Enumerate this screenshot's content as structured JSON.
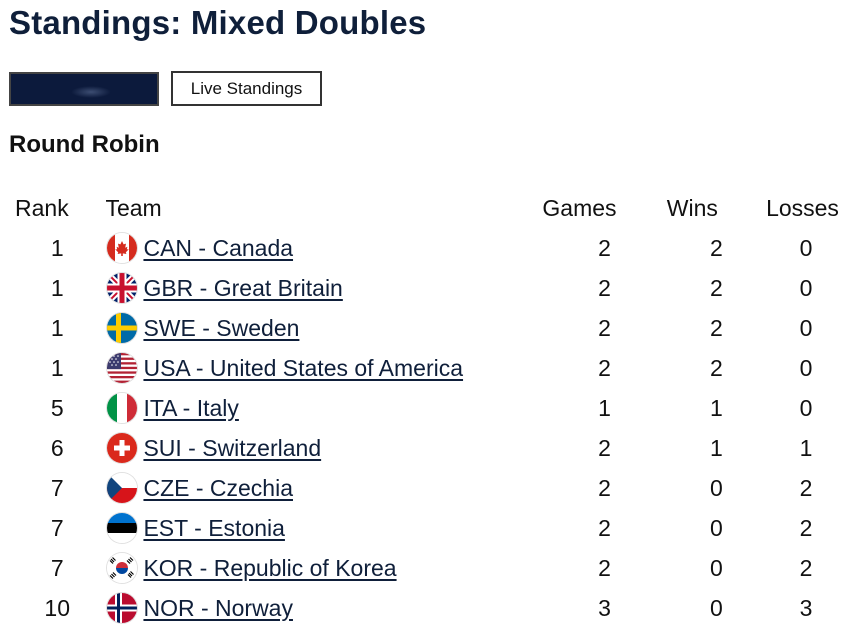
{
  "page": {
    "title": "Standings: Mixed Doubles",
    "live_button": "Live Standings",
    "section_title": "Round Robin"
  },
  "table": {
    "headers": {
      "rank": "Rank",
      "team": "Team",
      "games": "Games",
      "wins": "Wins",
      "losses": "Losses"
    },
    "rows": [
      {
        "rank": "1",
        "team": "CAN - Canada",
        "flag": "canada-flag-icon",
        "games": "2",
        "wins": "2",
        "losses": "0"
      },
      {
        "rank": "1",
        "team": "GBR - Great Britain",
        "flag": "great-britain-flag-icon",
        "games": "2",
        "wins": "2",
        "losses": "0"
      },
      {
        "rank": "1",
        "team": "SWE - Sweden",
        "flag": "sweden-flag-icon",
        "games": "2",
        "wins": "2",
        "losses": "0"
      },
      {
        "rank": "1",
        "team": "USA - United States of America",
        "flag": "usa-flag-icon",
        "games": "2",
        "wins": "2",
        "losses": "0"
      },
      {
        "rank": "5",
        "team": "ITA - Italy",
        "flag": "italy-flag-icon",
        "games": "1",
        "wins": "1",
        "losses": "0"
      },
      {
        "rank": "6",
        "team": "SUI - Switzerland",
        "flag": "switzerland-flag-icon",
        "games": "2",
        "wins": "1",
        "losses": "1"
      },
      {
        "rank": "7",
        "team": "CZE - Czechia",
        "flag": "czechia-flag-icon",
        "games": "2",
        "wins": "0",
        "losses": "2"
      },
      {
        "rank": "7",
        "team": "EST - Estonia",
        "flag": "estonia-flag-icon",
        "games": "2",
        "wins": "0",
        "losses": "2"
      },
      {
        "rank": "7",
        "team": "KOR - Republic of Korea",
        "flag": "korea-flag-icon",
        "games": "2",
        "wins": "0",
        "losses": "2"
      },
      {
        "rank": "10",
        "team": "NOR - Norway",
        "flag": "norway-flag-icon",
        "games": "3",
        "wins": "0",
        "losses": "3"
      }
    ]
  },
  "colors": {
    "title": "#0f1f3a",
    "dark_button": "#0c1a3c",
    "link": "#0f1f3a"
  }
}
